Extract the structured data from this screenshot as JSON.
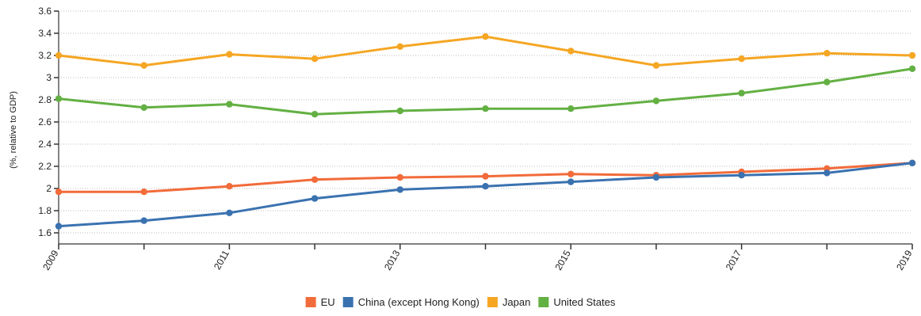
{
  "chart_data": {
    "type": "line",
    "title": "",
    "xlabel": "",
    "ylabel": "(%, relative to GDP)",
    "x": [
      2009,
      2010,
      2011,
      2012,
      2013,
      2014,
      2015,
      2016,
      2017,
      2018,
      2019
    ],
    "x_tick_labels": [
      "2009",
      "2011",
      "2013",
      "2015",
      "2017",
      "2019"
    ],
    "ylim": [
      1.5,
      3.6
    ],
    "y_ticks": [
      1.6,
      1.8,
      2,
      2.2,
      2.4,
      2.6,
      2.8,
      3,
      3.2,
      3.4,
      3.6
    ],
    "grid": true,
    "legend_position": "bottom",
    "series": [
      {
        "name": "EU",
        "color": "#f26b3a",
        "values": [
          1.97,
          1.97,
          2.02,
          2.08,
          2.1,
          2.11,
          2.13,
          2.12,
          2.15,
          2.18,
          2.23
        ]
      },
      {
        "name": "China (except Hong Kong)",
        "color": "#3a72b0",
        "values": [
          1.66,
          1.71,
          1.78,
          1.91,
          1.99,
          2.02,
          2.06,
          2.1,
          2.12,
          2.14,
          2.23
        ]
      },
      {
        "name": "Japan",
        "color": "#f5a623",
        "values": [
          3.2,
          3.11,
          3.21,
          3.17,
          3.28,
          3.37,
          3.24,
          3.11,
          3.17,
          3.22,
          3.2
        ]
      },
      {
        "name": "United States",
        "color": "#63b043",
        "values": [
          2.81,
          2.73,
          2.76,
          2.67,
          2.7,
          2.72,
          2.72,
          2.79,
          2.86,
          2.96,
          3.08
        ]
      }
    ]
  }
}
